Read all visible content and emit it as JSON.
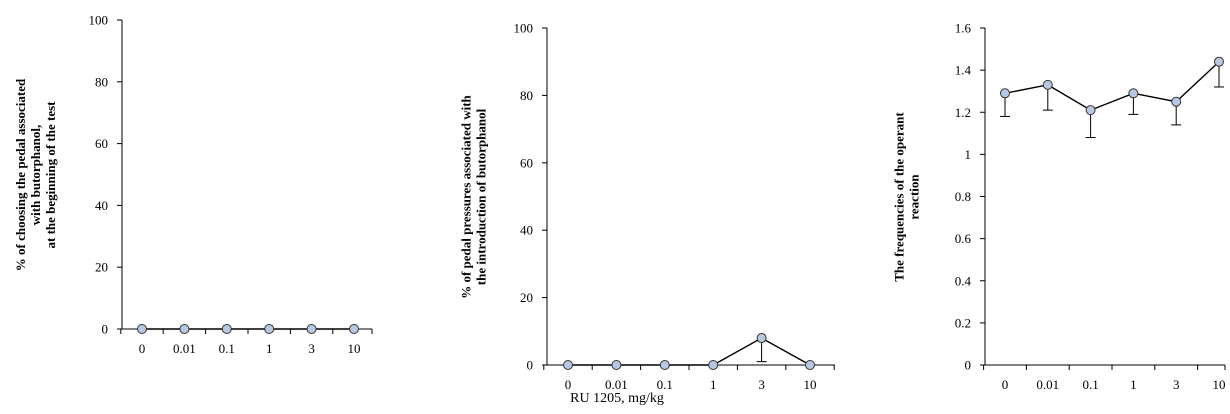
{
  "x_axis_shared_label": "RU 1205, mg/kg",
  "chart_data": [
    {
      "type": "line",
      "categories": [
        "0",
        "0.01",
        "0.1",
        "1",
        "3",
        "10"
      ],
      "ylabel_lines": [
        "% of choosing the pedal associated",
        "with butorphanol,",
        "at the beginning  of the test"
      ],
      "ylim": [
        0,
        100
      ],
      "yticks": [
        "0",
        "20",
        "40",
        "60",
        "80",
        "100"
      ],
      "yticks_values": [
        0,
        20,
        40,
        60,
        80,
        100
      ],
      "series": [
        {
          "values": [
            0,
            0,
            0,
            0,
            0,
            0
          ],
          "errors": [
            0,
            0,
            0,
            0,
            0,
            0
          ]
        }
      ],
      "grid": false
    },
    {
      "type": "line",
      "categories": [
        "0",
        "0.01",
        "0.1",
        "1",
        "3",
        "10"
      ],
      "ylabel_lines": [
        "% of pedal pressures  associated with",
        "the introduction  of butorphanol"
      ],
      "ylim": [
        0,
        100
      ],
      "yticks": [
        "0",
        "20",
        "40",
        "60",
        "80",
        "100"
      ],
      "yticks_values": [
        0,
        20,
        40,
        60,
        80,
        100
      ],
      "series": [
        {
          "values": [
            0,
            0,
            0,
            0,
            8,
            0
          ],
          "errors": [
            0,
            0,
            0,
            0,
            7,
            0
          ]
        }
      ],
      "grid": false
    },
    {
      "type": "line",
      "categories": [
        "0",
        "0.01",
        "0.1",
        "1",
        "3",
        "10"
      ],
      "ylabel_lines": [
        "The frequencies  of the operant",
        "reaction"
      ],
      "ylim": [
        0,
        1.6
      ],
      "yticks": [
        "0",
        "0.2",
        "0.4",
        "0.6",
        "0.8",
        "1",
        "1.2",
        "1.4",
        "1.6"
      ],
      "yticks_values": [
        0,
        0.2,
        0.4,
        0.6,
        0.8,
        1,
        1.2,
        1.4,
        1.6
      ],
      "series": [
        {
          "values": [
            1.29,
            1.33,
            1.21,
            1.29,
            1.25,
            1.44
          ],
          "errors": [
            0.11,
            0.12,
            0.13,
            0.1,
            0.11,
            0.12
          ]
        }
      ],
      "grid": false
    }
  ],
  "colors": {
    "marker_fill": "#b8c8e2",
    "marker_stroke": "#333333",
    "line": "#000000"
  }
}
